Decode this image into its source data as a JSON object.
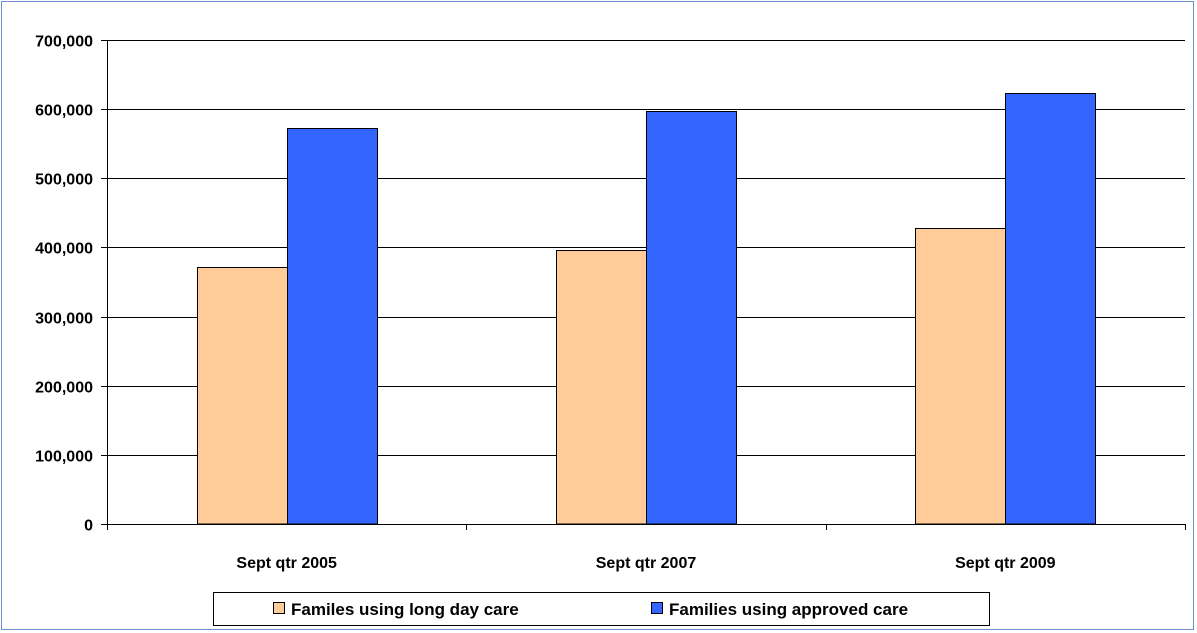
{
  "chart_data": {
    "type": "bar",
    "title": "",
    "xlabel": "",
    "ylabel": "",
    "categories": [
      "Sept qtr 2005",
      "Sept qtr 2007",
      "Sept qtr 2009"
    ],
    "series": [
      {
        "name": "Familes using long day care",
        "values": [
          371000,
          397000,
          428000
        ],
        "color": "#ffcc99"
      },
      {
        "name": "Families using approved care",
        "values": [
          573000,
          598000,
          623000
        ],
        "color": "#3366ff"
      }
    ],
    "ylim": [
      0,
      700000
    ],
    "yticks": [
      0,
      100000,
      200000,
      300000,
      400000,
      500000,
      600000,
      700000
    ],
    "ytick_labels": [
      "0",
      "100,000",
      "200,000",
      "300,000",
      "400,000",
      "500,000",
      "600,000",
      "700,000"
    ],
    "grid": true,
    "legend_position": "bottom"
  }
}
